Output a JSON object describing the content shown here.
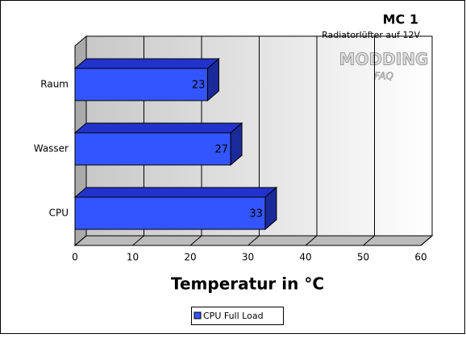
{
  "chart_data": {
    "type": "bar3d_horizontal",
    "title": "MC 1",
    "subtitle": "Radiatorlüfter auf 12V",
    "watermark": [
      "MODDING",
      "FAQ"
    ],
    "categories": [
      "Raum",
      "Wasser",
      "CPU"
    ],
    "series": [
      {
        "name": "CPU Full Load",
        "color": "#3355ff",
        "values": [
          23,
          27,
          33
        ]
      }
    ],
    "xlim": [
      0,
      60
    ],
    "xticks": [
      0,
      10,
      20,
      30,
      40,
      50,
      60
    ],
    "grid": true,
    "xlabel": "Temperatur in °C",
    "legend": "bottom"
  }
}
